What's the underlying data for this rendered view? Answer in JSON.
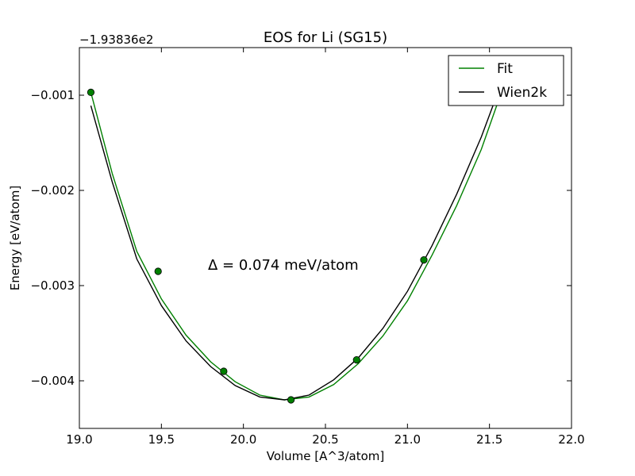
{
  "chart_data": {
    "type": "line",
    "title": "EOS for Li (SG15)",
    "xlabel": "Volume [A^3/atom]",
    "ylabel": "Energy [eV/atom]",
    "offset_label": "−1.93836e2",
    "annotation": "Δ = 0.074 meV/atom",
    "xlim": [
      19.0,
      22.0
    ],
    "ylim": [
      -0.0045,
      -0.0005
    ],
    "x_ticks": [
      19.0,
      19.5,
      20.0,
      20.5,
      21.0,
      21.5,
      22.0
    ],
    "x_tick_labels": [
      "19.0",
      "19.5",
      "20.0",
      "20.5",
      "21.0",
      "21.5",
      "22.0"
    ],
    "y_ticks": [
      -0.001,
      -0.002,
      -0.003,
      -0.004
    ],
    "y_tick_labels": [
      "−0.001",
      "−0.002",
      "−0.003",
      "−0.004"
    ],
    "legend_position": "top-right",
    "grid": false,
    "series": [
      {
        "name": "Fit",
        "color": "#008000",
        "kind": "curve",
        "x": [
          19.07,
          19.2,
          19.35,
          19.5,
          19.65,
          19.8,
          19.95,
          20.1,
          20.25,
          20.4,
          20.55,
          20.7,
          20.85,
          21.0,
          21.15,
          21.3,
          21.45,
          21.55
        ],
        "y": [
          -0.00097,
          -0.00182,
          -0.00264,
          -0.00314,
          -0.00352,
          -0.0038,
          -0.00401,
          -0.00415,
          -0.0042,
          -0.00417,
          -0.00404,
          -0.00382,
          -0.00353,
          -0.00316,
          -0.00268,
          -0.00216,
          -0.00157,
          -0.00108
        ]
      },
      {
        "name": "Wien2k",
        "color": "#000000",
        "kind": "curve",
        "x": [
          19.07,
          19.2,
          19.35,
          19.5,
          19.65,
          19.8,
          19.95,
          20.1,
          20.25,
          20.4,
          20.55,
          20.7,
          20.85,
          21.0,
          21.15,
          21.3,
          21.45,
          21.56
        ],
        "y": [
          -0.00111,
          -0.00191,
          -0.00272,
          -0.00321,
          -0.00358,
          -0.00385,
          -0.00405,
          -0.00417,
          -0.0042,
          -0.00415,
          -0.00399,
          -0.00376,
          -0.00345,
          -0.00306,
          -0.00258,
          -0.00204,
          -0.00144,
          -0.00093
        ]
      },
      {
        "name": "Data",
        "color": "#008000",
        "kind": "points",
        "x": [
          19.07,
          19.48,
          19.88,
          20.29,
          20.69,
          21.1
        ],
        "y": [
          -0.00097,
          -0.00285,
          -0.0039,
          -0.0042,
          -0.00378,
          -0.00273
        ]
      }
    ]
  }
}
